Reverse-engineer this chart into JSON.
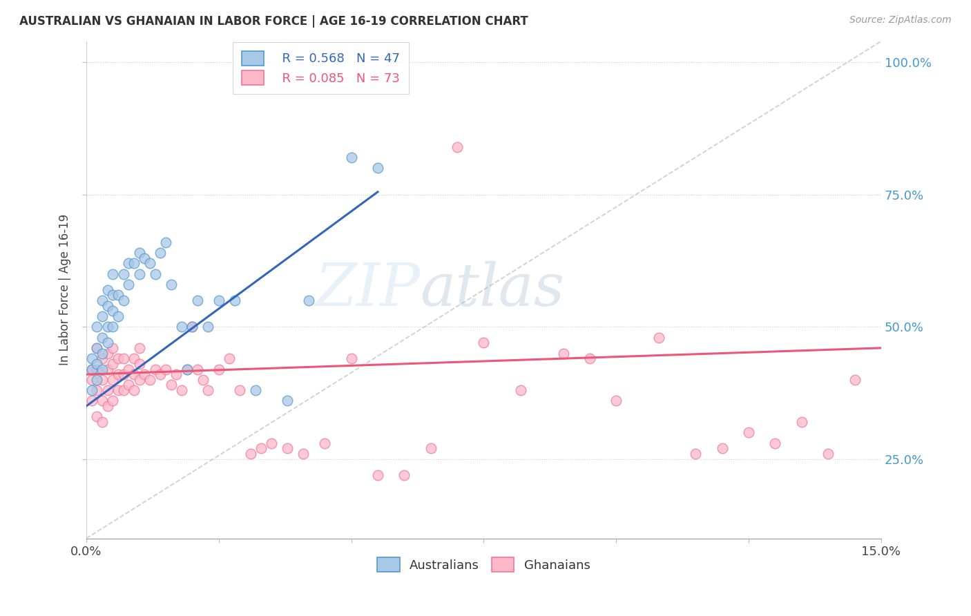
{
  "title": "AUSTRALIAN VS GHANAIAN IN LABOR FORCE | AGE 16-19 CORRELATION CHART",
  "source": "Source: ZipAtlas.com",
  "ylabel_label": "In Labor Force | Age 16-19",
  "xlim": [
    0.0,
    0.15
  ],
  "ylim": [
    0.1,
    1.04
  ],
  "yticks": [
    0.25,
    0.5,
    0.75,
    1.0
  ],
  "yticklabels": [
    "25.0%",
    "50.0%",
    "75.0%",
    "100.0%"
  ],
  "xticks": [
    0.0,
    0.025,
    0.05,
    0.075,
    0.1,
    0.125,
    0.15
  ],
  "xticklabels_show": [
    "0.0%",
    "",
    "",
    "",
    "",
    "",
    "15.0%"
  ],
  "watermark_text": "ZIPatlas",
  "legend_blue_r": "R = 0.568",
  "legend_blue_n": "N = 47",
  "legend_pink_r": "R = 0.085",
  "legend_pink_n": "N = 73",
  "blue_color": "#a8c8e8",
  "blue_edge": "#5599cc",
  "pink_color": "#ffb8c8",
  "pink_edge": "#ee7799",
  "trendline_blue": "#3366bb",
  "trendline_pink": "#ee5577",
  "trendline_gray": "#bbbbbb",
  "aus_x": [
    0.001,
    0.001,
    0.001,
    0.002,
    0.002,
    0.002,
    0.002,
    0.003,
    0.003,
    0.003,
    0.003,
    0.003,
    0.004,
    0.004,
    0.004,
    0.004,
    0.005,
    0.005,
    0.005,
    0.005,
    0.006,
    0.006,
    0.007,
    0.007,
    0.008,
    0.008,
    0.009,
    0.01,
    0.01,
    0.011,
    0.012,
    0.013,
    0.014,
    0.015,
    0.016,
    0.018,
    0.019,
    0.02,
    0.021,
    0.023,
    0.025,
    0.028,
    0.032,
    0.038,
    0.042,
    0.05,
    0.055
  ],
  "aus_y": [
    0.38,
    0.42,
    0.44,
    0.4,
    0.43,
    0.46,
    0.5,
    0.42,
    0.45,
    0.48,
    0.52,
    0.55,
    0.47,
    0.5,
    0.54,
    0.57,
    0.5,
    0.53,
    0.56,
    0.6,
    0.52,
    0.56,
    0.55,
    0.6,
    0.58,
    0.62,
    0.62,
    0.6,
    0.64,
    0.63,
    0.62,
    0.6,
    0.64,
    0.66,
    0.58,
    0.5,
    0.42,
    0.5,
    0.55,
    0.5,
    0.55,
    0.55,
    0.38,
    0.36,
    0.55,
    0.82,
    0.8
  ],
  "gha_x": [
    0.001,
    0.001,
    0.001,
    0.002,
    0.002,
    0.002,
    0.002,
    0.003,
    0.003,
    0.003,
    0.003,
    0.004,
    0.004,
    0.004,
    0.004,
    0.005,
    0.005,
    0.005,
    0.005,
    0.006,
    0.006,
    0.006,
    0.007,
    0.007,
    0.007,
    0.008,
    0.008,
    0.009,
    0.009,
    0.009,
    0.01,
    0.01,
    0.01,
    0.011,
    0.012,
    0.013,
    0.014,
    0.015,
    0.016,
    0.017,
    0.018,
    0.019,
    0.02,
    0.021,
    0.022,
    0.023,
    0.025,
    0.027,
    0.029,
    0.031,
    0.033,
    0.035,
    0.038,
    0.041,
    0.045,
    0.05,
    0.055,
    0.06,
    0.065,
    0.07,
    0.075,
    0.082,
    0.09,
    0.095,
    0.1,
    0.108,
    0.115,
    0.12,
    0.125,
    0.13,
    0.135,
    0.14,
    0.145
  ],
  "gha_y": [
    0.36,
    0.4,
    0.42,
    0.33,
    0.38,
    0.42,
    0.46,
    0.32,
    0.36,
    0.4,
    0.44,
    0.35,
    0.38,
    0.42,
    0.45,
    0.36,
    0.4,
    0.43,
    0.46,
    0.38,
    0.41,
    0.44,
    0.38,
    0.41,
    0.44,
    0.39,
    0.42,
    0.38,
    0.41,
    0.44,
    0.4,
    0.43,
    0.46,
    0.41,
    0.4,
    0.42,
    0.41,
    0.42,
    0.39,
    0.41,
    0.38,
    0.42,
    0.5,
    0.42,
    0.4,
    0.38,
    0.42,
    0.44,
    0.38,
    0.26,
    0.27,
    0.28,
    0.27,
    0.26,
    0.28,
    0.44,
    0.22,
    0.22,
    0.27,
    0.84,
    0.47,
    0.38,
    0.45,
    0.44,
    0.36,
    0.48,
    0.26,
    0.27,
    0.3,
    0.28,
    0.32,
    0.26,
    0.4
  ]
}
